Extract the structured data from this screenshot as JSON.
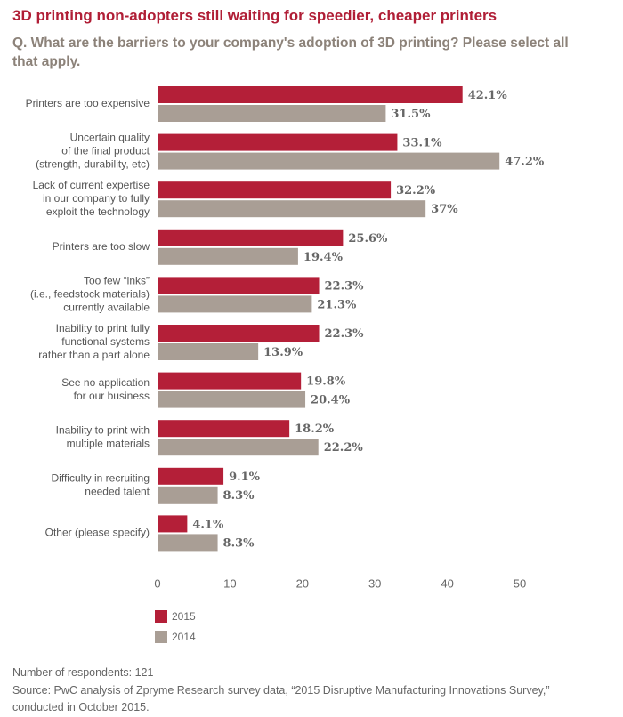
{
  "chart_data": {
    "type": "bar",
    "orientation": "horizontal",
    "title": "3D printing non-adopters still waiting for speedier, cheaper printers",
    "subtitle": "Q. What are the barriers to your company's adoption of 3D printing? Please select all that apply.",
    "categories": [
      "Printers are too expensive",
      "Uncertain quality\nof the final product\n(strength, durability, etc)",
      "Lack of current expertise\nin our company to fully\nexploit the technology",
      "Printers are too slow",
      "Too few “inks”\n(i.e., feedstock materials)\ncurrently available",
      "Inability to print fully\nfunctional systems\nrather than a part alone",
      "See no application\nfor our business",
      "Inability to print with\nmultiple materials",
      "Difficulty in recruiting\nneeded talent",
      "Other (please specify)"
    ],
    "series": [
      {
        "name": "2015",
        "color": "#b41f38",
        "values": [
          42.1,
          33.1,
          32.2,
          25.6,
          22.3,
          22.3,
          19.8,
          18.2,
          9.1,
          4.1
        ],
        "value_labels": [
          "42.1%",
          "33.1%",
          "32.2%",
          "25.6%",
          "22.3%",
          "22.3%",
          "19.8%",
          "18.2%",
          "9.1%",
          "4.1%"
        ]
      },
      {
        "name": "2014",
        "color": "#a99e95",
        "values": [
          31.5,
          47.2,
          37,
          19.4,
          21.3,
          13.9,
          20.4,
          22.2,
          8.3,
          8.3
        ],
        "value_labels": [
          "31.5%",
          "47.2%",
          "37%",
          "19.4%",
          "21.3%",
          "13.9%",
          "20.4%",
          "22.2%",
          "8.3%",
          "8.3%"
        ]
      }
    ],
    "xlim": [
      0,
      50
    ],
    "xticks": [
      0,
      10,
      20,
      30,
      40,
      50
    ],
    "grid": false,
    "footnote": "Number of respondents: 121",
    "source": "Source: PwC analysis of Zpryme Research survey data, “2015 Disruptive Manufacturing Innovations Survey,” conducted in October 2015."
  }
}
